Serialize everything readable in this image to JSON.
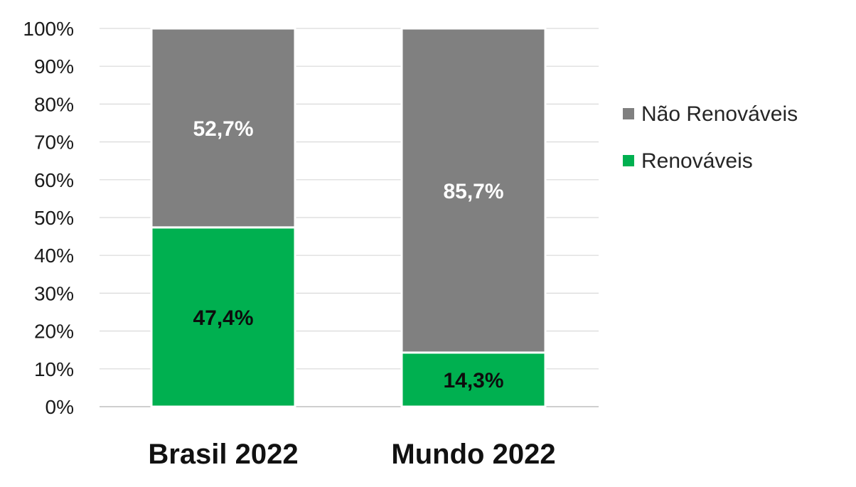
{
  "chart_data": {
    "type": "bar",
    "stacked": true,
    "categories": [
      "Brasil 2022",
      "Mundo 2022"
    ],
    "series": [
      {
        "name": "Renováveis",
        "values": [
          47.4,
          14.3
        ],
        "labels": [
          "47,4%",
          "14,3%"
        ],
        "color": "#00b050",
        "label_color": "#0d0d0d"
      },
      {
        "name": "Não Renováveis",
        "values": [
          52.7,
          85.7
        ],
        "labels": [
          "52,7%",
          "85,7%"
        ],
        "color": "#808080",
        "label_color": "#ffffff"
      }
    ],
    "ylim": [
      0,
      100
    ],
    "yticks": [
      "0%",
      "10%",
      "20%",
      "30%",
      "40%",
      "50%",
      "60%",
      "70%",
      "80%",
      "90%",
      "100%"
    ],
    "grid": true,
    "legend_placement": "right",
    "legend": [
      "Não Renováveis",
      "Renováveis"
    ]
  }
}
